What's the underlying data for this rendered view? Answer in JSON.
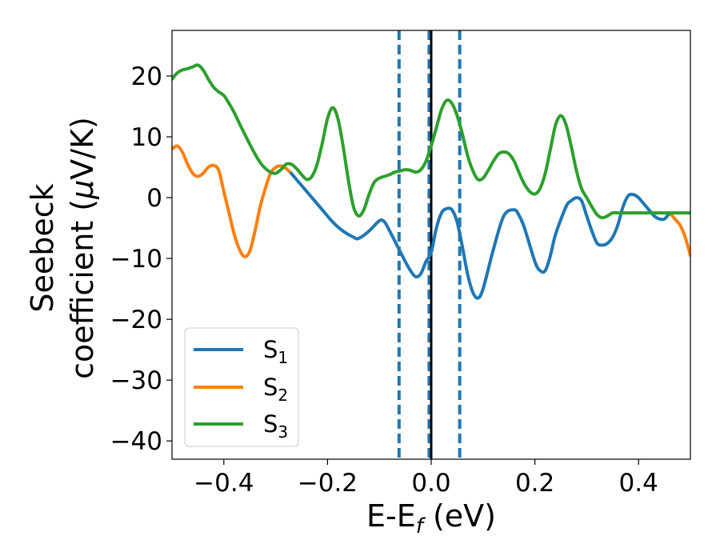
{
  "chart_data": {
    "type": "line",
    "xlabel": "E-E",
    "xlabel_sub": "f",
    "xlabel_unit": " (eV)",
    "ylabel_line1": "Seebeck",
    "ylabel_line2": "coefficient  (",
    "ylabel_mu": "μ",
    "ylabel_unit": "V/K)",
    "xlim": [
      -0.5,
      0.5
    ],
    "ylim": [
      -43,
      27.5
    ],
    "xticks": [
      -0.4,
      -0.2,
      0.0,
      0.2,
      0.4
    ],
    "xtick_labels": [
      "−0.4",
      "−0.2",
      "0.0",
      "0.2",
      "0.4"
    ],
    "yticks": [
      20,
      10,
      0,
      -10,
      -20,
      -30,
      -40
    ],
    "ytick_labels": [
      "20",
      "10",
      "0",
      "−10",
      "−20",
      "−30",
      "−40"
    ],
    "legend_position": "lower-left",
    "grid": false,
    "vlines": [
      {
        "x": -0.062,
        "style": "dashed",
        "color": "#1f77b4"
      },
      {
        "x": -0.004,
        "style": "dashed",
        "color": "#1f77b4"
      },
      {
        "x": 0.0,
        "style": "solid",
        "color": "#000000"
      },
      {
        "x": 0.055,
        "style": "dashed",
        "color": "#1f77b4"
      }
    ],
    "series": [
      {
        "name": "S",
        "sub": "2",
        "color": "#ff7f0e",
        "x": [
          -0.5,
          -0.49,
          -0.48,
          -0.47,
          -0.46,
          -0.45,
          -0.44,
          -0.43,
          -0.42,
          -0.41,
          -0.4,
          -0.39,
          -0.38,
          -0.37,
          -0.36,
          -0.35,
          -0.34,
          -0.33,
          -0.32,
          -0.31,
          -0.3,
          -0.29,
          -0.28,
          -0.27,
          0.46,
          0.47,
          0.48,
          0.49,
          0.5
        ],
        "y": [
          8,
          8.5,
          7.5,
          5.5,
          4,
          3.5,
          4,
          5,
          5.3,
          4.5,
          1,
          -2.5,
          -6,
          -8.5,
          -9.7,
          -8.8,
          -5.5,
          -1.5,
          1.5,
          4,
          5,
          5.2,
          4.8,
          4,
          -2.5,
          -3.5,
          -4.5,
          -6.5,
          -9.5
        ]
      },
      {
        "name": "S",
        "sub": "1",
        "color": "#1f77b4",
        "x": [
          -0.27,
          -0.25,
          -0.23,
          -0.21,
          -0.19,
          -0.17,
          -0.15,
          -0.14,
          -0.12,
          -0.1,
          -0.09,
          -0.08,
          -0.065,
          -0.05,
          -0.04,
          -0.03,
          -0.02,
          -0.01,
          0.0,
          0.01,
          0.02,
          0.03,
          0.04,
          0.05,
          0.06,
          0.07,
          0.08,
          0.09,
          0.1,
          0.12,
          0.14,
          0.16,
          0.17,
          0.18,
          0.2,
          0.21,
          0.22,
          0.23,
          0.24,
          0.26,
          0.27,
          0.28,
          0.29,
          0.3,
          0.31,
          0.32,
          0.33,
          0.34,
          0.35,
          0.36,
          0.37,
          0.38,
          0.39,
          0.4,
          0.41,
          0.42,
          0.43,
          0.44,
          0.45,
          0.46
        ],
        "y": [
          4,
          2,
          0,
          -2,
          -4,
          -5.5,
          -6.5,
          -6.7,
          -5.5,
          -3.8,
          -4,
          -5.5,
          -8,
          -10.5,
          -12,
          -13,
          -12.5,
          -10.5,
          -9,
          -5,
          -2.5,
          -1.8,
          -2,
          -4,
          -8,
          -12.5,
          -15.5,
          -16.5,
          -15,
          -8.5,
          -3,
          -2,
          -3,
          -5,
          -10.5,
          -12,
          -12,
          -9.5,
          -6,
          -1.5,
          -0.5,
          0,
          -0.5,
          -3,
          -5.5,
          -7.5,
          -7.8,
          -7.5,
          -6.5,
          -4.5,
          -1.5,
          0.3,
          0.5,
          0,
          -1,
          -2,
          -3,
          -3.5,
          -3.5,
          -2.5
        ]
      },
      {
        "name": "S",
        "sub": "3",
        "color": "#2ca02c",
        "x": [
          -0.5,
          -0.49,
          -0.48,
          -0.47,
          -0.46,
          -0.45,
          -0.44,
          -0.43,
          -0.42,
          -0.41,
          -0.4,
          -0.39,
          -0.38,
          -0.37,
          -0.36,
          -0.35,
          -0.34,
          -0.33,
          -0.32,
          -0.31,
          -0.3,
          -0.29,
          -0.28,
          -0.27,
          -0.26,
          -0.25,
          -0.24,
          -0.23,
          -0.22,
          -0.21,
          -0.2,
          -0.19,
          -0.18,
          -0.17,
          -0.16,
          -0.15,
          -0.14,
          -0.13,
          -0.12,
          -0.11,
          -0.1,
          -0.09,
          -0.08,
          -0.07,
          -0.06,
          -0.05,
          -0.04,
          -0.03,
          -0.02,
          -0.01,
          0.0,
          0.01,
          0.02,
          0.03,
          0.04,
          0.05,
          0.06,
          0.07,
          0.08,
          0.09,
          0.1,
          0.11,
          0.12,
          0.13,
          0.14,
          0.15,
          0.16,
          0.17,
          0.18,
          0.19,
          0.2,
          0.21,
          0.22,
          0.23,
          0.24,
          0.25,
          0.26,
          0.27,
          0.28,
          0.29,
          0.3,
          0.31,
          0.32,
          0.33,
          0.34,
          0.35,
          0.36,
          0.37,
          0.38,
          0.39,
          0.4,
          0.41,
          0.42,
          0.43,
          0.44,
          0.45,
          0.46,
          0.47,
          0.48,
          0.49,
          0.5
        ],
        "y": [
          19.5,
          20.5,
          21,
          21.2,
          21.5,
          21.8,
          21,
          19.5,
          18.2,
          17.4,
          16.8,
          15.5,
          14,
          12.2,
          10.5,
          8.8,
          7.2,
          5.8,
          4.8,
          4.2,
          4,
          4.6,
          5.5,
          5.5,
          4.8,
          3.8,
          3,
          3.5,
          5.5,
          9,
          13,
          14.8,
          13,
          8.5,
          3,
          -1.5,
          -3,
          -2,
          0.5,
          2.5,
          3.2,
          3.5,
          3.8,
          4.2,
          4.4,
          4.6,
          4.5,
          4.2,
          4.6,
          6,
          8.5,
          11.5,
          14.5,
          16,
          15.5,
          13.5,
          10.5,
          7,
          4.5,
          3,
          3.2,
          4.5,
          6,
          7.2,
          7.5,
          7.2,
          6,
          4,
          2.2,
          1,
          0.6,
          1.5,
          4,
          8,
          12,
          13.5,
          12,
          8.5,
          4.5,
          1.5,
          0,
          -1.5,
          -2.8,
          -3.3,
          -3,
          -2.5,
          -2.5,
          -2.5,
          -2.5,
          -2.5,
          -2.5,
          -2.5,
          -2.5,
          -2.5,
          -2.5,
          -2.5,
          -2.5,
          -2.5,
          -2.5,
          -2.5,
          -2.5
        ]
      }
    ]
  }
}
